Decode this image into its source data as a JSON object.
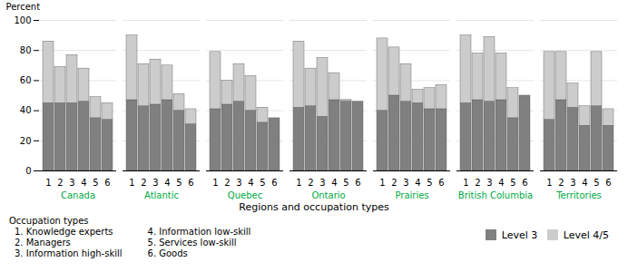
{
  "chart_data": {
    "type": "bar",
    "stacked": true,
    "groups": [
      "Canada",
      "Atlantic",
      "Quebec",
      "Ontario",
      "Prairies",
      "British Columbia",
      "Territories"
    ],
    "categories": [
      "1",
      "2",
      "3",
      "4",
      "5",
      "6"
    ],
    "series": [
      {
        "name": "Level 3",
        "color": "#808080",
        "values": [
          [
            45,
            45,
            45,
            46,
            35,
            34
          ],
          [
            47,
            43,
            44,
            47,
            40,
            31
          ],
          [
            41,
            44,
            46,
            40,
            32,
            35
          ],
          [
            42,
            43,
            36,
            47,
            47,
            46
          ],
          [
            40,
            50,
            46,
            45,
            41,
            41
          ],
          [
            45,
            47,
            46,
            47,
            35,
            50
          ],
          [
            34,
            47,
            42,
            30,
            43,
            30
          ]
        ]
      },
      {
        "name": "Level 4/5",
        "color": "#cccccc",
        "values": [
          [
            41,
            24,
            32,
            22,
            14,
            11
          ],
          [
            43,
            28,
            30,
            23,
            11,
            10
          ],
          [
            38,
            16,
            25,
            23,
            10,
            0
          ],
          [
            44,
            25,
            39,
            18,
            -1,
            0
          ],
          [
            48,
            32,
            25,
            9,
            14,
            16
          ],
          [
            45,
            31,
            43,
            31,
            20,
            0
          ],
          [
            45,
            32,
            16,
            13,
            36,
            11
          ]
        ]
      }
    ],
    "x_label": "Regions and occupation types",
    "y_label": "Percent",
    "ylim": [
      0,
      100
    ],
    "yticks": [
      0,
      20,
      40,
      60,
      80,
      100
    ],
    "grid": true,
    "legend": "bottom",
    "annotations": [
      "Occupation types",
      "1.  Knowledge experts",
      "2.  Managers",
      "3.  Information high-skill",
      "4.  Information low-skill",
      "5.  Services low-skill",
      "6.  Goods"
    ]
  }
}
